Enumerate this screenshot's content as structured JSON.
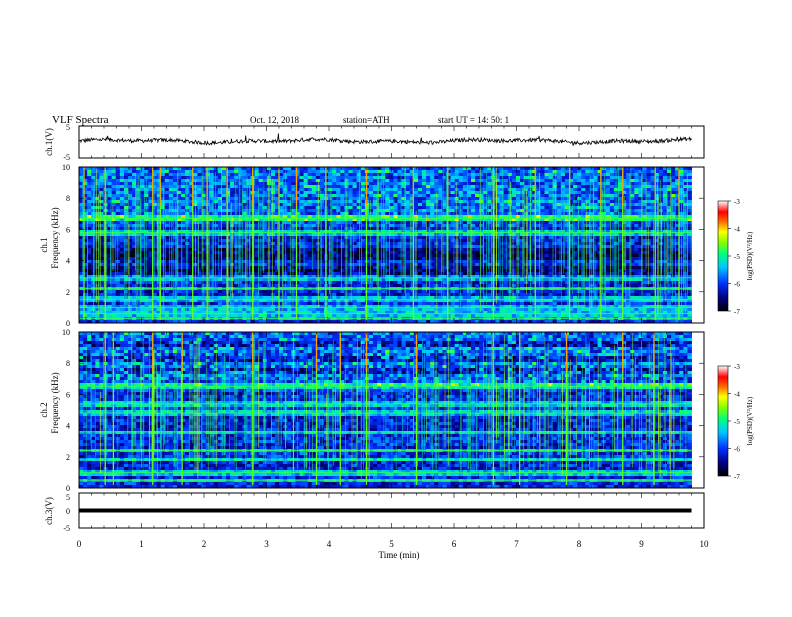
{
  "header": {
    "title": "VLF  Spectra",
    "date": "Oct. 12, 2018",
    "station": "station=ATH",
    "start": "start  UT  =   14: 50: 1"
  },
  "colors": {
    "background": "#ffffff",
    "axes": "#000000",
    "spectrum_floor": "#000020"
  },
  "colorbar": {
    "label": "log(PSD)(V²/Hz)",
    "ticks": [
      "-3",
      "-4",
      "-5",
      "-6",
      "-7"
    ]
  },
  "chart_data": [
    {
      "type": "line",
      "name": "ch1-waveform",
      "ylabel": "ch.1(V)",
      "ylim": [
        -5,
        5
      ],
      "yticks": [
        "5",
        "-5"
      ],
      "xlim": [
        0,
        10
      ],
      "x_end": 9.8,
      "baseline": 0.3,
      "noise_amplitude": 0.6
    },
    {
      "type": "heatmap",
      "name": "ch1-spectrogram",
      "ylabel": "ch.1\nFrequency  (kHz)",
      "ylim": [
        0,
        10
      ],
      "yticks": [
        "10",
        "8",
        "6",
        "4",
        "2",
        "0"
      ],
      "xlim": [
        0,
        10
      ],
      "x_end": 9.8,
      "clim": [
        -7,
        -3
      ],
      "bright_bands_khz": [
        0.3,
        0.6,
        1.0,
        1.5,
        2.2,
        2.9,
        5.8,
        6.7
      ],
      "dark_bands_khz": [
        3.0,
        3.5,
        4.2,
        4.6
      ],
      "strong_spikes_min": [
        0.08,
        0.42,
        1.18,
        1.3,
        1.82,
        2.05,
        2.37,
        2.78,
        3.2,
        3.48,
        3.95,
        4.6,
        5.35,
        5.9,
        6.63,
        7.3,
        7.85,
        8.35,
        8.7,
        9.22,
        9.6
      ]
    },
    {
      "type": "heatmap",
      "name": "ch2-spectrogram",
      "ylabel": "ch.2\nFrequency  (kHz)",
      "ylim": [
        0,
        10
      ],
      "yticks": [
        "10",
        "8",
        "6",
        "4",
        "2",
        "0"
      ],
      "xlim": [
        0,
        10
      ],
      "x_end": 9.8,
      "clim": [
        -7,
        -3
      ],
      "bright_bands_khz": [
        0.5,
        1.0,
        1.8,
        2.4,
        3.6,
        4.8,
        5.4,
        6.5
      ],
      "dark_bands_khz": [
        7.5,
        8.3,
        9.2
      ],
      "strong_spikes_min": [
        0.42,
        0.55,
        1.18,
        1.65,
        2.78,
        3.8,
        4.18,
        4.6,
        5.4,
        6.63,
        7.05,
        7.8,
        8.7,
        9.2
      ]
    },
    {
      "type": "line",
      "name": "ch3-waveform",
      "ylabel": "ch.3(V)",
      "ylim": [
        -5,
        5
      ],
      "yticks": [
        "5",
        "0",
        "-5"
      ],
      "xlim": [
        0,
        10
      ],
      "x_end": 9.8,
      "value": 0
    }
  ],
  "xaxis": {
    "label": "Time  (min)",
    "ticks": [
      "0",
      "1",
      "2",
      "3",
      "4",
      "5",
      "6",
      "7",
      "8",
      "9",
      "10"
    ]
  }
}
